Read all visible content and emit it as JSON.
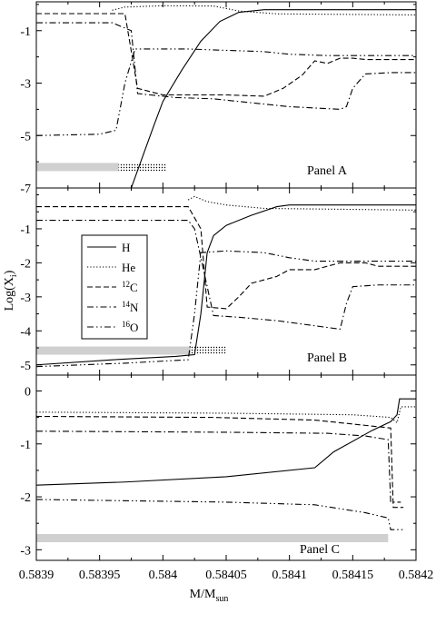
{
  "figure": {
    "xlabel": "M/M",
    "xlabel_sub": "sun",
    "ylabel": "Log(X",
    "ylabel_sub": "i",
    "ylabel_close": ")"
  },
  "legend": {
    "entries": [
      {
        "key": "H",
        "label": "H",
        "sup": "",
        "dash": "none"
      },
      {
        "key": "He",
        "label": "He",
        "sup": "",
        "dash": "1.2,2.2"
      },
      {
        "key": "C12",
        "label": "C",
        "sup": "12",
        "dash": "6,3"
      },
      {
        "key": "N14",
        "label": "N",
        "sup": "14",
        "dash": "7,3,1.5,3"
      },
      {
        "key": "O16",
        "label": "O",
        "sup": "16",
        "dash": "7,3,1.5,3,1.5,3"
      }
    ]
  },
  "chart_data": [
    {
      "type": "line",
      "panel": "A",
      "label": "Panel A",
      "xlim": [
        0.5839,
        0.5842
      ],
      "ylim": [
        -7,
        0.1
      ],
      "yticks": [
        -1,
        -3,
        -5,
        -7
      ],
      "series": [
        {
          "name": "H",
          "points": [
            [
              0.583975,
              -7
            ],
            [
              0.583984,
              -5.8
            ],
            [
              0.583993,
              -4.6
            ],
            [
              0.584,
              -3.7
            ],
            [
              0.584015,
              -2.5
            ],
            [
              0.58403,
              -1.4
            ],
            [
              0.584045,
              -0.65
            ],
            [
              0.58406,
              -0.3
            ],
            [
              0.58408,
              -0.2
            ],
            [
              0.5842,
              -0.2
            ]
          ]
        },
        {
          "name": "He",
          "points": [
            [
              0.58396,
              -0.22
            ],
            [
              0.58397,
              -0.1
            ],
            [
              0.584,
              -0.05
            ],
            [
              0.58404,
              -0.06
            ],
            [
              0.58406,
              -0.25
            ],
            [
              0.58409,
              -0.36
            ],
            [
              0.5842,
              -0.4
            ]
          ]
        },
        {
          "name": "C12",
          "points": [
            [
              0.5839,
              -0.35
            ],
            [
              0.58397,
              -0.35
            ],
            [
              0.58398,
              -3.2
            ],
            [
              0.584,
              -3.45
            ],
            [
              0.58405,
              -3.45
            ],
            [
              0.58408,
              -3.5
            ],
            [
              0.584095,
              -3.2
            ],
            [
              0.58411,
              -2.7
            ],
            [
              0.58412,
              -2.15
            ],
            [
              0.58413,
              -2.25
            ],
            [
              0.58414,
              -2.05
            ],
            [
              0.58415,
              -2.05
            ],
            [
              0.58416,
              -2.1
            ],
            [
              0.584175,
              -2.1
            ],
            [
              0.5842,
              -2.1
            ]
          ]
        },
        {
          "name": "N14",
          "points": [
            [
              0.5839,
              -0.7
            ],
            [
              0.58396,
              -0.7
            ],
            [
              0.583975,
              -1.0
            ],
            [
              0.58398,
              -3.4
            ],
            [
              0.58401,
              -3.55
            ],
            [
              0.58404,
              -3.6
            ],
            [
              0.58406,
              -3.7
            ],
            [
              0.58408,
              -3.8
            ],
            [
              0.5841,
              -3.9
            ],
            [
              0.58412,
              -3.95
            ],
            [
              0.58414,
              -4.0
            ],
            [
              0.584145,
              -3.9
            ],
            [
              0.58415,
              -3.2
            ],
            [
              0.58416,
              -2.65
            ],
            [
              0.58418,
              -2.6
            ],
            [
              0.5842,
              -2.6
            ]
          ]
        },
        {
          "name": "O16",
          "points": [
            [
              0.5839,
              -5.0
            ],
            [
              0.58395,
              -4.95
            ],
            [
              0.583963,
              -4.8
            ],
            [
              0.58397,
              -3.0
            ],
            [
              0.583978,
              -1.7
            ],
            [
              0.58402,
              -1.7
            ],
            [
              0.58405,
              -1.75
            ],
            [
              0.58408,
              -1.8
            ],
            [
              0.5841,
              -1.9
            ],
            [
              0.58413,
              -1.95
            ],
            [
              0.5842,
              -1.95
            ]
          ]
        }
      ],
      "bars": [
        {
          "fill": "#d0d0d0",
          "pattern": "none",
          "x0": 0.5839,
          "x1": 0.583965,
          "y": -6.2
        },
        {
          "fill": "#ffffff",
          "pattern": "dots",
          "x0": 0.583965,
          "x1": 0.584003,
          "y": -6.2
        }
      ]
    },
    {
      "type": "line",
      "panel": "B",
      "label": "Panel B",
      "xlim": [
        0.5839,
        0.5842
      ],
      "ylim": [
        -5.3,
        0.2
      ],
      "yticks": [
        -1,
        -2,
        -3,
        -4,
        -5
      ],
      "series": [
        {
          "name": "H",
          "points": [
            [
              0.5839,
              -5.0
            ],
            [
              0.58396,
              -4.85
            ],
            [
              0.58401,
              -4.75
            ],
            [
              0.584025,
              -4.7
            ],
            [
              0.58403,
              -3.5
            ],
            [
              0.584035,
              -1.7
            ],
            [
              0.58404,
              -1.2
            ],
            [
              0.58405,
              -0.9
            ],
            [
              0.58407,
              -0.6
            ],
            [
              0.58409,
              -0.35
            ],
            [
              0.5841,
              -0.3
            ],
            [
              0.5842,
              -0.3
            ]
          ]
        },
        {
          "name": "He",
          "points": [
            [
              0.58402,
              -0.15
            ],
            [
              0.584025,
              -0.05
            ],
            [
              0.584035,
              -0.2
            ],
            [
              0.58405,
              -0.3
            ],
            [
              0.58408,
              -0.4
            ],
            [
              0.5842,
              -0.45
            ]
          ]
        },
        {
          "name": "C12",
          "points": [
            [
              0.5839,
              -0.35
            ],
            [
              0.58402,
              -0.35
            ],
            [
              0.58403,
              -1.0
            ],
            [
              0.584035,
              -3.3
            ],
            [
              0.58405,
              -3.35
            ],
            [
              0.58406,
              -3.0
            ],
            [
              0.58407,
              -2.6
            ],
            [
              0.58409,
              -2.4
            ],
            [
              0.5841,
              -2.2
            ],
            [
              0.58412,
              -2.2
            ],
            [
              0.58414,
              -2.0
            ],
            [
              0.58416,
              -2.0
            ],
            [
              0.58417,
              -2.1
            ],
            [
              0.5842,
              -2.1
            ]
          ]
        },
        {
          "name": "N14",
          "points": [
            [
              0.5839,
              -0.75
            ],
            [
              0.58402,
              -0.75
            ],
            [
              0.584025,
              -1.0
            ],
            [
              0.58404,
              -3.55
            ],
            [
              0.58406,
              -3.6
            ],
            [
              0.58409,
              -3.7
            ],
            [
              0.58412,
              -3.85
            ],
            [
              0.58414,
              -3.95
            ],
            [
              0.584145,
              -3.2
            ],
            [
              0.58415,
              -2.7
            ],
            [
              0.58417,
              -2.65
            ],
            [
              0.5842,
              -2.65
            ]
          ]
        },
        {
          "name": "O16",
          "points": [
            [
              0.5839,
              -5.05
            ],
            [
              0.58397,
              -4.95
            ],
            [
              0.58402,
              -4.85
            ],
            [
              0.584025,
              -3.5
            ],
            [
              0.58403,
              -1.7
            ],
            [
              0.58405,
              -1.65
            ],
            [
              0.58408,
              -1.7
            ],
            [
              0.5841,
              -1.85
            ],
            [
              0.58412,
              -1.95
            ],
            [
              0.58416,
              -1.95
            ],
            [
              0.5842,
              -1.95
            ]
          ]
        }
      ],
      "bars": [
        {
          "fill": "#d0d0d0",
          "pattern": "none",
          "x0": 0.5839,
          "x1": 0.584022,
          "y": -4.58
        },
        {
          "fill": "#ffffff",
          "pattern": "dots",
          "x0": 0.584022,
          "x1": 0.58405,
          "y": -4.58
        }
      ]
    },
    {
      "type": "line",
      "panel": "C",
      "label": "Panel C",
      "xlim": [
        0.5839,
        0.5842
      ],
      "ylim": [
        -3.2,
        0.3
      ],
      "yticks": [
        0,
        -1,
        -2,
        -3
      ],
      "xticks": [
        "0.5839",
        "0.58395",
        "0.584",
        "0.58405",
        "0.5841",
        "0.58415",
        "0.5842"
      ],
      "series": [
        {
          "name": "H",
          "points": [
            [
              0.5839,
              -1.78
            ],
            [
              0.58397,
              -1.72
            ],
            [
              0.58405,
              -1.62
            ],
            [
              0.58412,
              -1.45
            ],
            [
              0.584135,
              -1.15
            ],
            [
              0.584165,
              -0.75
            ],
            [
              0.58418,
              -0.58
            ],
            [
              0.584185,
              -0.45
            ],
            [
              0.584187,
              -0.15
            ],
            [
              0.5842,
              -0.15
            ]
          ]
        },
        {
          "name": "He",
          "points": [
            [
              0.5839,
              -0.4
            ],
            [
              0.58405,
              -0.42
            ],
            [
              0.58415,
              -0.45
            ],
            [
              0.58418,
              -0.5
            ],
            [
              0.584185,
              -0.6
            ],
            [
              0.584188,
              -0.3
            ],
            [
              0.5842,
              -0.3
            ]
          ]
        },
        {
          "name": "C12",
          "points": [
            [
              0.5839,
              -0.48
            ],
            [
              0.58404,
              -0.5
            ],
            [
              0.58412,
              -0.55
            ],
            [
              0.58416,
              -0.65
            ],
            [
              0.58418,
              -0.7
            ],
            [
              0.584182,
              -2.2
            ],
            [
              0.58419,
              -2.2
            ]
          ]
        },
        {
          "name": "N14",
          "points": [
            [
              0.5839,
              -0.76
            ],
            [
              0.58405,
              -0.78
            ],
            [
              0.58413,
              -0.8
            ],
            [
              0.58416,
              -0.85
            ],
            [
              0.584178,
              -0.92
            ],
            [
              0.58418,
              -2.1
            ],
            [
              0.584188,
              -2.1
            ]
          ]
        },
        {
          "name": "O16",
          "points": [
            [
              0.5839,
              -2.05
            ],
            [
              0.58405,
              -2.1
            ],
            [
              0.58412,
              -2.15
            ],
            [
              0.58416,
              -2.3
            ],
            [
              0.584178,
              -2.4
            ],
            [
              0.58418,
              -2.62
            ],
            [
              0.58419,
              -2.62
            ]
          ]
        }
      ],
      "bars": [
        {
          "fill": "#d0d0d0",
          "pattern": "none",
          "x0": 0.5839,
          "x1": 0.584178,
          "y": -2.78
        }
      ]
    }
  ]
}
